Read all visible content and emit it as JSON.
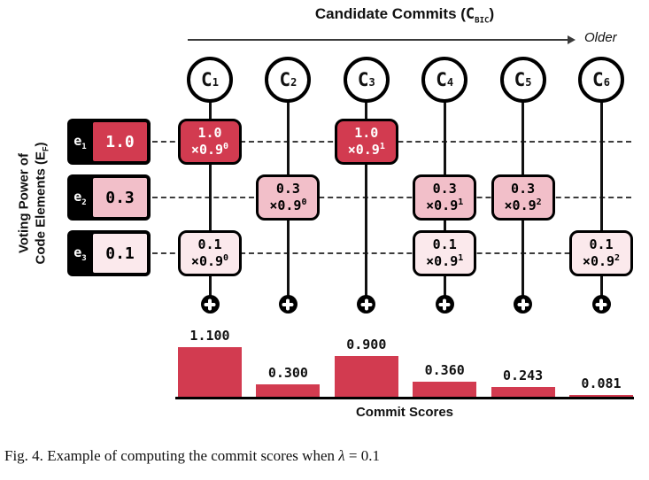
{
  "header": {
    "title_pre": "Candidate Commits (",
    "title_var": "C",
    "title_sub": "BIC",
    "title_post": ")",
    "older_label": "Older"
  },
  "axis": {
    "line1": "Voting Power of",
    "line2_pre": "Code Elements (E",
    "line2_sub": "F",
    "line2_post": ")"
  },
  "commits": [
    {
      "label": "C",
      "sub": "1"
    },
    {
      "label": "C",
      "sub": "2"
    },
    {
      "label": "C",
      "sub": "3"
    },
    {
      "label": "C",
      "sub": "4"
    },
    {
      "label": "C",
      "sub": "5"
    },
    {
      "label": "C",
      "sub": "6"
    }
  ],
  "elements": [
    {
      "label": "e",
      "sub": "1",
      "power": "1.0"
    },
    {
      "label": "e",
      "sub": "2",
      "power": "0.3"
    },
    {
      "label": "e",
      "sub": "3",
      "power": "0.1"
    }
  ],
  "row_colors": [
    "#d23b50",
    "#f2bfc9",
    "#fbe9ec"
  ],
  "row_text_colors": [
    "#ffffff",
    "#000000",
    "#000000"
  ],
  "cells": [
    {
      "col": 0,
      "row": 0,
      "value": "1.0",
      "factor": "×0.9",
      "exp": "0"
    },
    {
      "col": 0,
      "row": 2,
      "value": "0.1",
      "factor": "×0.9",
      "exp": "0"
    },
    {
      "col": 1,
      "row": 1,
      "value": "0.3",
      "factor": "×0.9",
      "exp": "0"
    },
    {
      "col": 2,
      "row": 0,
      "value": "1.0",
      "factor": "×0.9",
      "exp": "1"
    },
    {
      "col": 3,
      "row": 1,
      "value": "0.3",
      "factor": "×0.9",
      "exp": "1"
    },
    {
      "col": 3,
      "row": 2,
      "value": "0.1",
      "factor": "×0.9",
      "exp": "1"
    },
    {
      "col": 4,
      "row": 1,
      "value": "0.3",
      "factor": "×0.9",
      "exp": "2"
    },
    {
      "col": 5,
      "row": 2,
      "value": "0.1",
      "factor": "×0.9",
      "exp": "2"
    }
  ],
  "chart_data": {
    "type": "bar",
    "categories": [
      "C1",
      "C2",
      "C3",
      "C4",
      "C5",
      "C6"
    ],
    "values": [
      1.1,
      0.3,
      0.9,
      0.36,
      0.243,
      0.081
    ],
    "bar_labels": [
      "1.100",
      "0.300",
      "0.900",
      "0.360",
      "0.243",
      "0.081"
    ],
    "title": "",
    "xlabel": "Commit Scores",
    "ylabel": "",
    "ylim": [
      0,
      1.1
    ],
    "grid": false,
    "legend": "none",
    "bar_color": "#d23b50"
  },
  "caption": {
    "fig": "Fig. 4.",
    "text": "  Example of computing the commit scores when ",
    "lambda": "λ",
    "equals": " = 0.1"
  }
}
